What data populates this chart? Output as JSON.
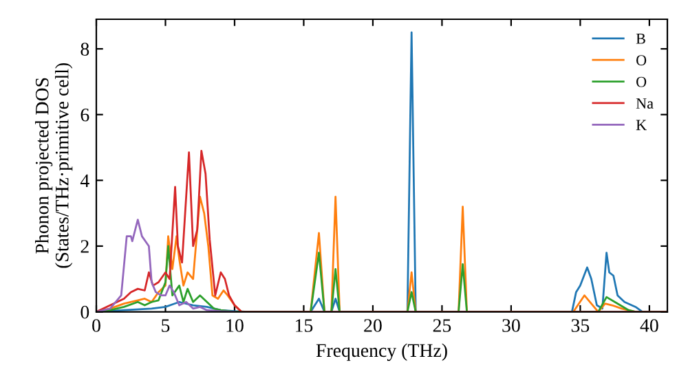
{
  "chart_data": {
    "type": "line",
    "xlabel": "Frequency (THz)",
    "ylabel": "Phonon projected DOS\n(States/THz·primitive cell)",
    "xlim": [
      0,
      41.3
    ],
    "ylim": [
      0,
      8.9
    ],
    "xticks": [
      0,
      5,
      10,
      15,
      20,
      25,
      30,
      35,
      40
    ],
    "yticks": [
      0,
      2,
      4,
      6,
      8
    ],
    "grid": false,
    "legend": "top right",
    "marker": "none",
    "line_style": "solid",
    "series": [
      {
        "name": "B",
        "color": "#1f77b4",
        "x": [
          0,
          2,
          4,
          5,
          6,
          7,
          8,
          9,
          10,
          11,
          15.5,
          16.1,
          16.5,
          17.0,
          17.3,
          17.6,
          22.5,
          22.8,
          23.1,
          34.4,
          34.7,
          35.0,
          35.5,
          35.8,
          36.2,
          36.6,
          36.9,
          37.1,
          37.4,
          37.7,
          38.2,
          39,
          39.5,
          41.3
        ],
        "values": [
          0,
          0.05,
          0.1,
          0.15,
          0.3,
          0.2,
          0.15,
          0.05,
          0.02,
          0,
          0,
          0.4,
          0,
          0,
          0.4,
          0,
          0,
          8.5,
          0,
          0,
          0.6,
          0.8,
          1.35,
          1.0,
          0.2,
          0.1,
          1.8,
          1.2,
          1.1,
          0.5,
          0.3,
          0.15,
          0,
          0
        ]
      },
      {
        "name": "O",
        "color": "#ff7f0e",
        "x": [
          0,
          1,
          2,
          3,
          3.5,
          4,
          4.5,
          5.0,
          5.2,
          5.5,
          5.8,
          6.0,
          6.3,
          6.6,
          7.0,
          7.5,
          7.8,
          8.1,
          8.4,
          8.8,
          9.2,
          9.5,
          10,
          10.5,
          15.5,
          16.1,
          16.5,
          17.0,
          17.3,
          17.6,
          22.5,
          22.8,
          23.1,
          26.2,
          26.5,
          26.8,
          34.5,
          35.3,
          36.3,
          36.8,
          37.3,
          38,
          39,
          41.3
        ],
        "values": [
          0,
          0.1,
          0.25,
          0.35,
          0.4,
          0.3,
          0.6,
          0.8,
          2.3,
          1.3,
          2.3,
          1.6,
          0.8,
          1.2,
          1.0,
          3.5,
          3.0,
          2.0,
          0.5,
          0.4,
          0.65,
          0.5,
          0.2,
          0,
          0,
          2.4,
          0,
          0,
          3.5,
          0,
          0,
          1.2,
          0,
          0,
          3.2,
          0,
          0,
          0.5,
          0,
          0.25,
          0.2,
          0.1,
          0,
          0
        ]
      },
      {
        "name": "O",
        "color": "#2ca02c",
        "x": [
          0,
          1,
          2,
          3,
          3.5,
          4,
          4.5,
          5.0,
          5.2,
          5.5,
          6,
          6.3,
          6.6,
          7.0,
          7.5,
          8.0,
          8.5,
          9,
          10,
          15.5,
          16.1,
          16.5,
          17.0,
          17.3,
          17.6,
          22.5,
          22.8,
          23.1,
          26.2,
          26.5,
          26.8,
          36.3,
          36.9,
          37.5,
          38.5,
          39,
          41.3
        ],
        "values": [
          0,
          0.05,
          0.15,
          0.3,
          0.2,
          0.3,
          0.35,
          0.9,
          2.0,
          0.5,
          0.8,
          0.3,
          0.7,
          0.3,
          0.5,
          0.3,
          0.1,
          0.05,
          0,
          0,
          1.8,
          0,
          0,
          1.3,
          0,
          0,
          0.6,
          0,
          0,
          1.45,
          0,
          0,
          0.45,
          0.3,
          0.05,
          0,
          0
        ]
      },
      {
        "name": "Na",
        "color": "#d62728",
        "x": [
          0,
          1,
          2,
          2.5,
          3,
          3.5,
          3.8,
          4.1,
          4.5,
          5.0,
          5.3,
          5.7,
          5.9,
          6.2,
          6.7,
          7.0,
          7.3,
          7.6,
          7.9,
          8.2,
          8.6,
          9.0,
          9.3,
          9.6,
          10,
          10.5,
          41.3
        ],
        "values": [
          0,
          0.2,
          0.4,
          0.6,
          0.7,
          0.65,
          1.2,
          0.8,
          0.9,
          1.2,
          1.0,
          3.8,
          2.0,
          1.5,
          4.85,
          2.0,
          2.5,
          4.9,
          4.2,
          2.2,
          0.5,
          1.2,
          1.0,
          0.5,
          0.2,
          0,
          0
        ]
      },
      {
        "name": "K",
        "color": "#9467bd",
        "x": [
          0,
          1,
          1.8,
          2.2,
          2.5,
          2.6,
          3.0,
          3.3,
          3.8,
          4.0,
          4.3,
          4.7,
          5.0,
          5.3,
          5.6,
          6.0,
          6.5,
          7.0,
          7.5,
          8,
          9,
          10
        ],
        "values": [
          0,
          0.1,
          0.5,
          2.3,
          2.3,
          2.15,
          2.8,
          2.3,
          2.0,
          0.9,
          0.6,
          0.5,
          0.5,
          0.8,
          0.6,
          0.2,
          0.3,
          0.1,
          0.15,
          0.05,
          0.02,
          0
        ]
      }
    ]
  }
}
